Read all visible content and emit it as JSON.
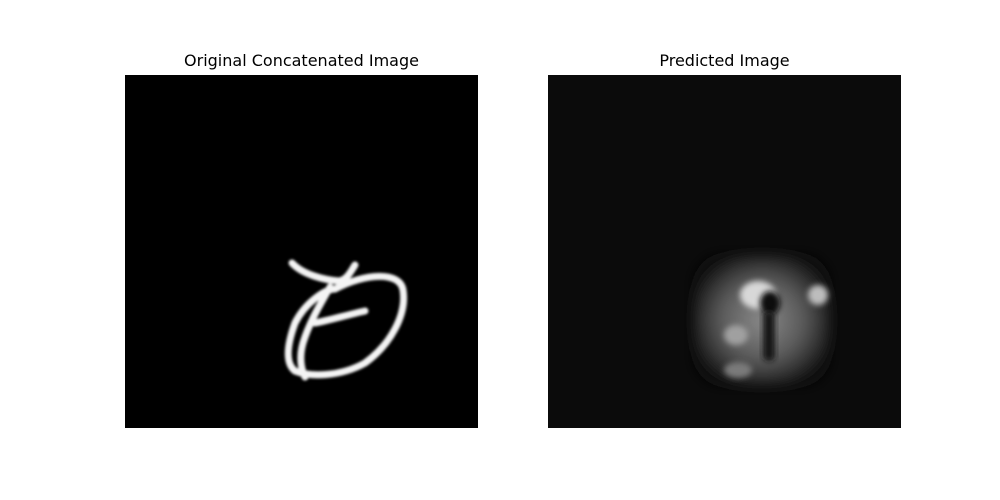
{
  "panels": [
    {
      "title": "Original Concatenated Image"
    },
    {
      "title": "Predicted Image"
    }
  ]
}
